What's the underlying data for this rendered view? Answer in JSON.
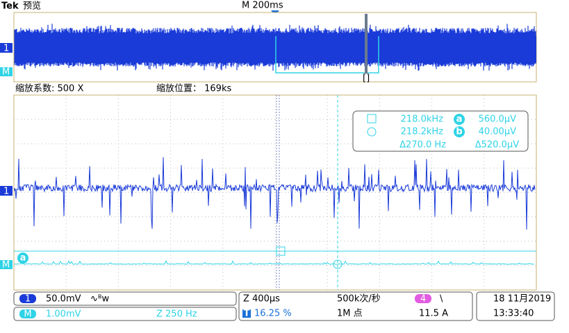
{
  "header": {
    "brand": "Tek",
    "mode": "预览",
    "timebase": "M 200ms",
    "window_marker": "[]"
  },
  "zoom": {
    "factor": "缩放系数: 500 X",
    "position": "缩放位置： 169ks"
  },
  "markers": {
    "channel": "1",
    "math": "M",
    "ref": "a"
  },
  "cursors": {
    "a_freq": "218.0kHz",
    "a_label": "a",
    "a_value": "560.0μV",
    "b_freq": "218.2kHz",
    "b_label": "b",
    "b_value": "40.00μV",
    "delta_freq": "Δ270.0 Hz",
    "delta_value": "Δ520.0μV"
  },
  "status": {
    "ch1_badge": "1",
    "ch1_scale": "50.0mV",
    "ch1_bw": "∿ᴮw",
    "math_badge": "M",
    "math_scale": "1.00mV",
    "math_span": "Z 250 Hz",
    "zoom_time": "Z 400μs",
    "sample_rate": "500k次/秒",
    "trig_badge": "4",
    "trig_slope": "\\",
    "trig_badge_t": "T",
    "trig_pos": "16.25 %",
    "record": "1M 点",
    "trig_level": "11.5 A",
    "date": "18 11月2019",
    "time": "13:33:40"
  }
}
